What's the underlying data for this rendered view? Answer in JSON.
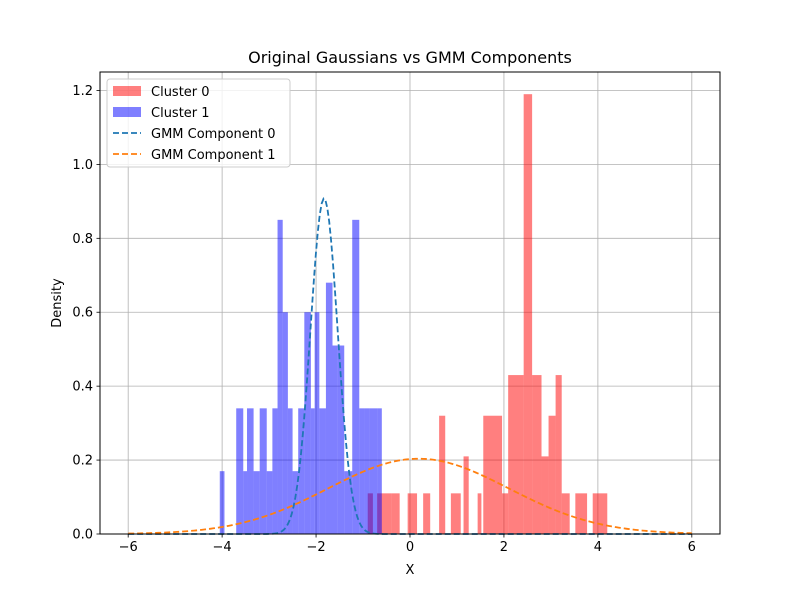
{
  "chart_data": {
    "type": "histogram_with_density_curves",
    "title": "Original Gaussians vs GMM Components",
    "xlabel": "X",
    "ylabel": "Density",
    "xlim": [
      -6.6,
      6.6
    ],
    "ylim": [
      0,
      1.25
    ],
    "xticks": [
      -6,
      -4,
      -2,
      0,
      2,
      4,
      6
    ],
    "xtick_labels": [
      "−6",
      "−4",
      "−2",
      "0",
      "2",
      "4",
      "6"
    ],
    "yticks": [
      0.0,
      0.2,
      0.4,
      0.6,
      0.8,
      1.0,
      1.2
    ],
    "ytick_labels": [
      "0.0",
      "0.2",
      "0.4",
      "0.6",
      "0.8",
      "1.0",
      "1.2"
    ],
    "grid": true,
    "legend_position": "top-left",
    "legend": [
      {
        "label": "Cluster 0",
        "kind": "patch",
        "color": "#ff0000",
        "alpha": 0.5
      },
      {
        "label": "Cluster 1",
        "kind": "patch",
        "color": "#0000ff",
        "alpha": 0.5
      },
      {
        "label": "GMM Component 0",
        "kind": "dashed-line",
        "color": "#1f77b4"
      },
      {
        "label": "GMM Component 1",
        "kind": "dashed-line",
        "color": "#ff7f0e"
      }
    ],
    "histograms": [
      {
        "name": "Cluster 0",
        "color": "#ff0000",
        "alpha": 0.5,
        "bin_edges": [
          -0.9,
          -0.79,
          -0.7,
          -0.4,
          -0.22,
          -0.05,
          0.15,
          0.28,
          0.43,
          0.62,
          0.75,
          0.87,
          1.08,
          1.14,
          1.25,
          1.44,
          1.52,
          1.56,
          1.96,
          2.09,
          2.42,
          2.6,
          2.8,
          2.95,
          3.1,
          3.23,
          3.4,
          3.52,
          3.77,
          3.89,
          4.2,
          4.4,
          4.6
        ],
        "densities": [
          0.11,
          0,
          0.11,
          0.11,
          0,
          0.11,
          0,
          0.11,
          0,
          0.32,
          0,
          0.11,
          0,
          0.21,
          0,
          0.11,
          0,
          0.32,
          0.11,
          0.43,
          1.19,
          0.43,
          0.21,
          0.32,
          0.43,
          0.11,
          0,
          0.11,
          0,
          0.11,
          0,
          0
        ]
      },
      {
        "name": "Cluster 1",
        "color": "#0000ff",
        "alpha": 0.5,
        "bin_edges": [
          -4.05,
          -3.95,
          -3.7,
          -3.55,
          -3.47,
          -3.33,
          -3.2,
          -3.05,
          -2.93,
          -2.82,
          -2.71,
          -2.6,
          -2.5,
          -2.38,
          -2.25,
          -2.11,
          -2.03,
          -1.93,
          -1.79,
          -1.65,
          -1.55,
          -1.4,
          -1.23,
          -1.08,
          -0.97,
          -0.86,
          -0.7,
          -0.6
        ],
        "densities": [
          0.17,
          0,
          0.34,
          0.17,
          0.34,
          0.17,
          0.34,
          0.17,
          0.34,
          0.85,
          0.6,
          0.34,
          0.17,
          0.34,
          0.6,
          0.34,
          0.6,
          0.34,
          0.68,
          0.51,
          0.51,
          0.17,
          0.85,
          0.34,
          0.34,
          0.34,
          0.34
        ]
      }
    ],
    "series": [
      {
        "name": "GMM Component 0",
        "color": "#1f77b4",
        "style": "dashed",
        "mean": -1.83,
        "std": 0.29,
        "weight": 0.66,
        "x_range": [
          -6,
          6
        ]
      },
      {
        "name": "GMM Component 1",
        "color": "#ff7f0e",
        "style": "dashed",
        "mean": 0.18,
        "std": 1.92,
        "weight": 0.98,
        "x_range": [
          -6,
          6
        ]
      }
    ]
  }
}
